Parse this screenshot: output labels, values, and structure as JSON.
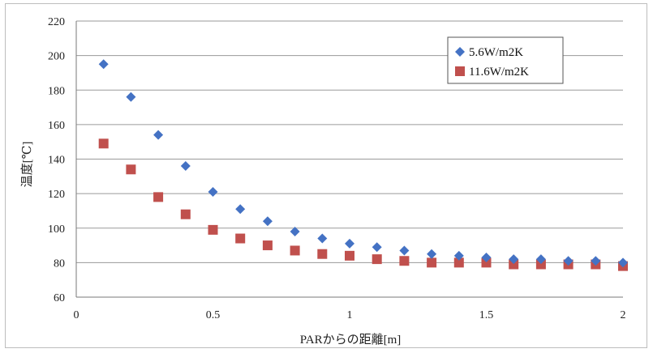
{
  "chart_data": {
    "type": "scatter",
    "title": "",
    "xlabel": "PARからの距離[m]",
    "ylabel": "温度[℃]",
    "xlim": [
      0,
      2
    ],
    "ylim": [
      60,
      220
    ],
    "x_ticks": [
      "0",
      "0.5",
      "1",
      "1.5",
      "2"
    ],
    "y_ticks": [
      "60",
      "80",
      "100",
      "120",
      "140",
      "160",
      "180",
      "200",
      "220"
    ],
    "grid": "horizontal",
    "legend_position": "top-right",
    "x": [
      0.1,
      0.2,
      0.3,
      0.4,
      0.5,
      0.6,
      0.7,
      0.8,
      0.9,
      1.0,
      1.1,
      1.2,
      1.3,
      1.4,
      1.5,
      1.6,
      1.7,
      1.8,
      1.9,
      2.0
    ],
    "series": [
      {
        "name": "5.6W/m2K",
        "marker": "diamond",
        "color": "#4472c4",
        "values": [
          195,
          176,
          154,
          136,
          121,
          111,
          104,
          98,
          94,
          91,
          89,
          87,
          85,
          84,
          83,
          82,
          82,
          81,
          81,
          80
        ]
      },
      {
        "name": "11.6W/m2K",
        "marker": "square",
        "color": "#c0504d",
        "values": [
          149,
          134,
          118,
          108,
          99,
          94,
          90,
          87,
          85,
          84,
          82,
          81,
          80,
          80,
          80,
          79,
          79,
          79,
          79,
          78
        ]
      }
    ]
  }
}
